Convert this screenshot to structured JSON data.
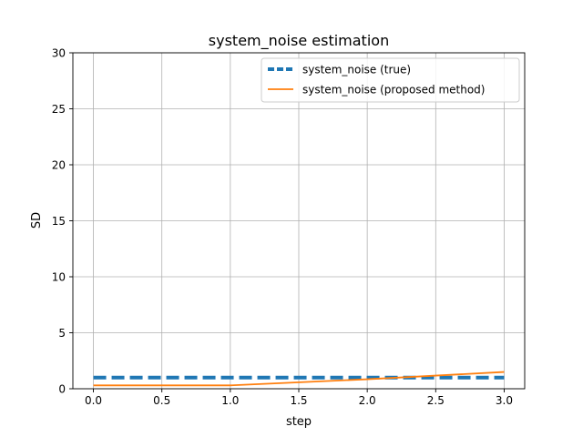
{
  "chart_data": {
    "type": "line",
    "title": "system_noise estimation",
    "xlabel": "step",
    "ylabel": "SD",
    "xlim": [
      -0.15,
      3.15
    ],
    "ylim": [
      0,
      30
    ],
    "x_ticks": [
      0.0,
      0.5,
      1.0,
      1.5,
      2.0,
      2.5,
      3.0
    ],
    "x_tick_labels": [
      "0.0",
      "0.5",
      "1.0",
      "1.5",
      "2.0",
      "2.5",
      "3.0"
    ],
    "y_ticks": [
      0,
      5,
      10,
      15,
      20,
      25,
      30
    ],
    "y_tick_labels": [
      "0",
      "5",
      "10",
      "15",
      "20",
      "25",
      "30"
    ],
    "grid": true,
    "legend_position": "top-right",
    "series": [
      {
        "name": "system_noise (true)",
        "color": "#1f77b4",
        "style": "dashed",
        "x": [
          0,
          1,
          2,
          3
        ],
        "values": [
          1.0,
          1.0,
          1.0,
          1.0
        ]
      },
      {
        "name": "system_noise (proposed method)",
        "color": "#ff7f0e",
        "style": "solid",
        "x": [
          0,
          1,
          2,
          3
        ],
        "values": [
          0.3,
          0.3,
          0.85,
          1.5
        ]
      }
    ]
  }
}
